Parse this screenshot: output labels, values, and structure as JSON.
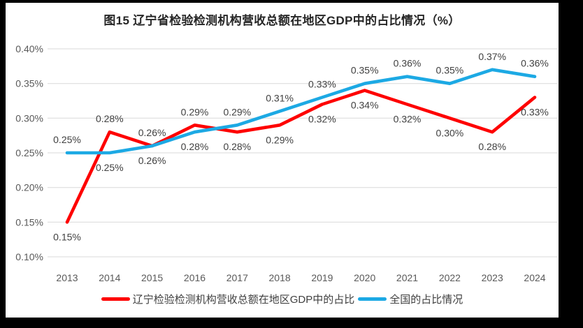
{
  "chart_data": {
    "type": "line",
    "title": "图15 辽宁省检验检测机构营收总额在地区GDP中的占比情况（%）",
    "categories": [
      "2013",
      "2014",
      "2015",
      "2016",
      "2017",
      "2018",
      "2019",
      "2020",
      "2021",
      "2022",
      "2023",
      "2024"
    ],
    "series": [
      {
        "name": "辽宁检验检测机构营收总额在地区GDP中的占比",
        "color": "#FE0000",
        "values": [
          0.15,
          0.28,
          0.26,
          0.29,
          0.28,
          0.29,
          0.32,
          0.34,
          0.32,
          0.3,
          0.28,
          0.33
        ],
        "labels": [
          "0.15%",
          "0.28%",
          "0.26%",
          "0.29%",
          "0.28%",
          "0.29%",
          "0.32%",
          "0.34%",
          "0.32%",
          "0.30%",
          "0.28%",
          "0.33%"
        ]
      },
      {
        "name": "全国的占比情况",
        "color": "#1CA9E4",
        "values": [
          0.25,
          0.25,
          0.26,
          0.28,
          0.29,
          0.31,
          0.33,
          0.35,
          0.36,
          0.35,
          0.37,
          0.36
        ],
        "labels": [
          "0.25%",
          "0.25%",
          "0.26%",
          "0.28%",
          "0.29%",
          "0.31%",
          "0.33%",
          "0.35%",
          "0.36%",
          "0.35%",
          "0.37%",
          "0.36%"
        ]
      }
    ],
    "y_axis": {
      "min": 0.1,
      "max": 0.4,
      "step": 0.05,
      "tick_labels": [
        "0.40%",
        "0.35%",
        "0.30%",
        "0.25%",
        "0.20%",
        "0.15%",
        "0.10%"
      ]
    },
    "grid": true,
    "legend_position": "bottom",
    "colors": {
      "grid": "#D9D9D9",
      "axis_text": "#595959",
      "label_text": "#404040",
      "title": "#262626",
      "background": "#FFFFFF",
      "frame": "#000000"
    }
  }
}
